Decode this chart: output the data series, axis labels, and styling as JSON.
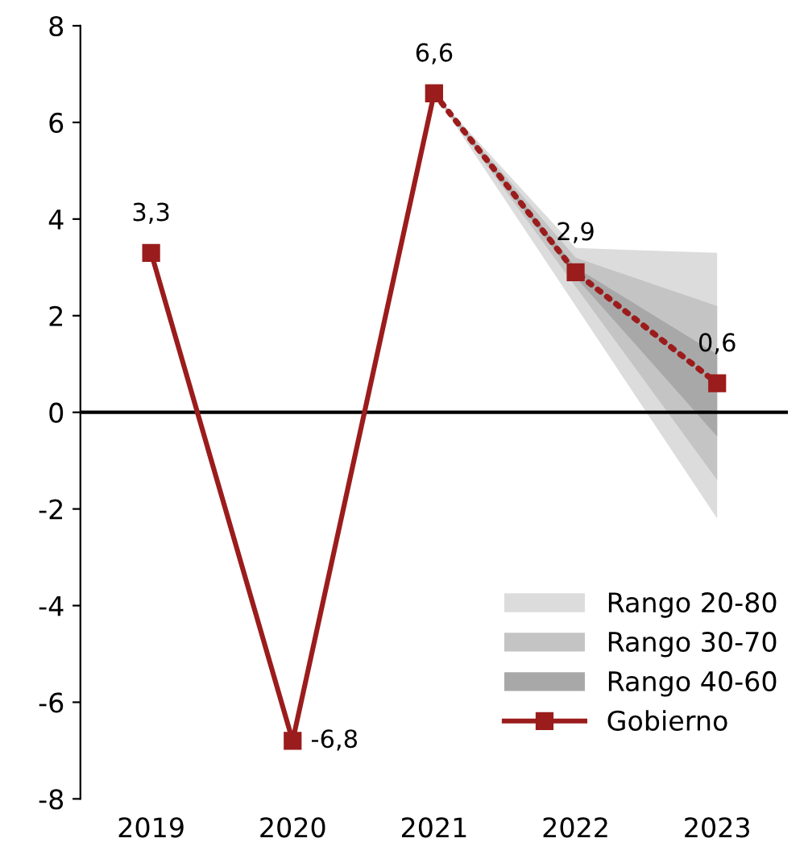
{
  "chart_data": {
    "type": "line",
    "categories": [
      "2019",
      "2020",
      "2021",
      "2022",
      "2023"
    ],
    "series": [
      {
        "name": "Rango 20-80",
        "type": "area",
        "color": "#dcdcdc",
        "values": [
          null,
          null,
          null,
          null,
          null
        ],
        "lower": [
          null,
          null,
          6.6,
          2.2,
          -2.2
        ],
        "upper": [
          null,
          null,
          6.6,
          3.4,
          3.3
        ]
      },
      {
        "name": "Rango 30-70",
        "type": "area",
        "color": "#c4c4c4",
        "values": [
          null,
          null,
          null,
          null,
          null
        ],
        "lower": [
          null,
          null,
          6.6,
          2.6,
          -1.4
        ],
        "upper": [
          null,
          null,
          6.6,
          3.2,
          2.2
        ]
      },
      {
        "name": "Rango 40-60",
        "type": "area",
        "color": "#a8a8a8",
        "values": [
          null,
          null,
          null,
          null,
          null
        ],
        "lower": [
          null,
          null,
          6.6,
          2.8,
          -0.5
        ],
        "upper": [
          null,
          null,
          6.6,
          3.0,
          1.2
        ]
      },
      {
        "name": "Gobierno",
        "color": "#9b1c1c",
        "line_style": "solid",
        "marker": "square",
        "values": [
          3.3,
          -6.8,
          6.6,
          null,
          null
        ],
        "value_labels": [
          "3,3",
          "-6,8",
          "6,6",
          null,
          null
        ]
      },
      {
        "color": "#9b1c1c",
        "line_style": "dotted",
        "marker": "square",
        "values": [
          null,
          null,
          6.6,
          2.9,
          0.6
        ],
        "value_labels": [
          null,
          null,
          null,
          "2,9",
          "0,6"
        ]
      }
    ],
    "ylim": [
      -8,
      8
    ],
    "yticks": [
      -8,
      -6,
      -4,
      -2,
      0,
      2,
      4,
      6,
      8
    ],
    "ref_lines": [
      {
        "axis": "y",
        "value": 0,
        "color": "#000000"
      }
    ],
    "grid": false,
    "legend": "bottom right"
  }
}
